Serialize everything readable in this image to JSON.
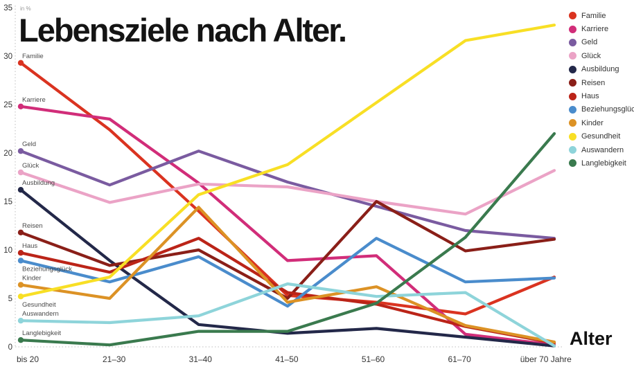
{
  "title": "Lebensziele nach Alter.",
  "chart_data": {
    "type": "line",
    "title": "Lebensziele nach Alter.",
    "ylabel": "in %",
    "xlabel": "Alter",
    "ylim": [
      0,
      35
    ],
    "yticks": [
      0,
      5,
      10,
      15,
      20,
      25,
      30,
      35
    ],
    "grid": "dotted y-axis line and dotted baseline only",
    "legend_position": "top-right",
    "categories": [
      "bis 20",
      "21–30",
      "31–40",
      "41–50",
      "51–60",
      "61–70",
      "über 70 Jahre"
    ],
    "series": [
      {
        "name": "Familie",
        "color": "#da3320",
        "label_side": "above",
        "values": [
          29.3,
          22.4,
          14.0,
          5.3,
          4.6,
          3.4,
          7.2
        ]
      },
      {
        "name": "Karriere",
        "color": "#d12d79",
        "label_side": "above",
        "values": [
          24.8,
          23.5,
          16.9,
          8.9,
          9.4,
          1.3,
          0.2
        ]
      },
      {
        "name": "Geld",
        "color": "#7a5ba0",
        "label_side": "above",
        "values": [
          20.2,
          16.7,
          20.2,
          17.0,
          14.5,
          12.0,
          11.2
        ]
      },
      {
        "name": "Glück",
        "color": "#eba3c6",
        "label_side": "above",
        "values": [
          18.0,
          14.9,
          16.8,
          16.5,
          15.0,
          13.7,
          18.2
        ]
      },
      {
        "name": "Ausbildung",
        "color": "#232849",
        "label_side": "above",
        "values": [
          16.2,
          8.9,
          2.3,
          1.4,
          1.9,
          1.0,
          0.1
        ]
      },
      {
        "name": "Reisen",
        "color": "#8a1f18",
        "label_side": "above",
        "values": [
          11.8,
          8.4,
          10.0,
          5.0,
          15.0,
          9.9,
          11.1
        ]
      },
      {
        "name": "Haus",
        "color": "#bb2418",
        "label_side": "above",
        "values": [
          9.7,
          7.7,
          11.2,
          5.6,
          4.4,
          2.1,
          0.4
        ]
      },
      {
        "name": "Beziehungsglück",
        "color": "#4a8ccc",
        "label_side": "below",
        "values": [
          8.9,
          6.7,
          9.3,
          4.2,
          11.2,
          6.7,
          7.1
        ]
      },
      {
        "name": "Kinder",
        "color": "#dc9225",
        "label_side": "above",
        "values": [
          6.4,
          5.0,
          14.4,
          4.6,
          6.2,
          2.2,
          0.5
        ]
      },
      {
        "name": "Gesundheit",
        "color": "#f8df25",
        "label_side": "below",
        "values": [
          5.2,
          7.2,
          15.7,
          18.8,
          25.2,
          31.6,
          33.2
        ]
      },
      {
        "name": "Auswandern",
        "color": "#8ed4da",
        "label_side": "above",
        "values": [
          2.7,
          2.5,
          3.2,
          6.5,
          5.2,
          5.6,
          0.1
        ]
      },
      {
        "name": "Langlebigkeit",
        "color": "#3a7a4e",
        "label_side": "above",
        "values": [
          0.7,
          0.2,
          1.6,
          1.6,
          4.5,
          11.3,
          22.0
        ]
      }
    ]
  }
}
